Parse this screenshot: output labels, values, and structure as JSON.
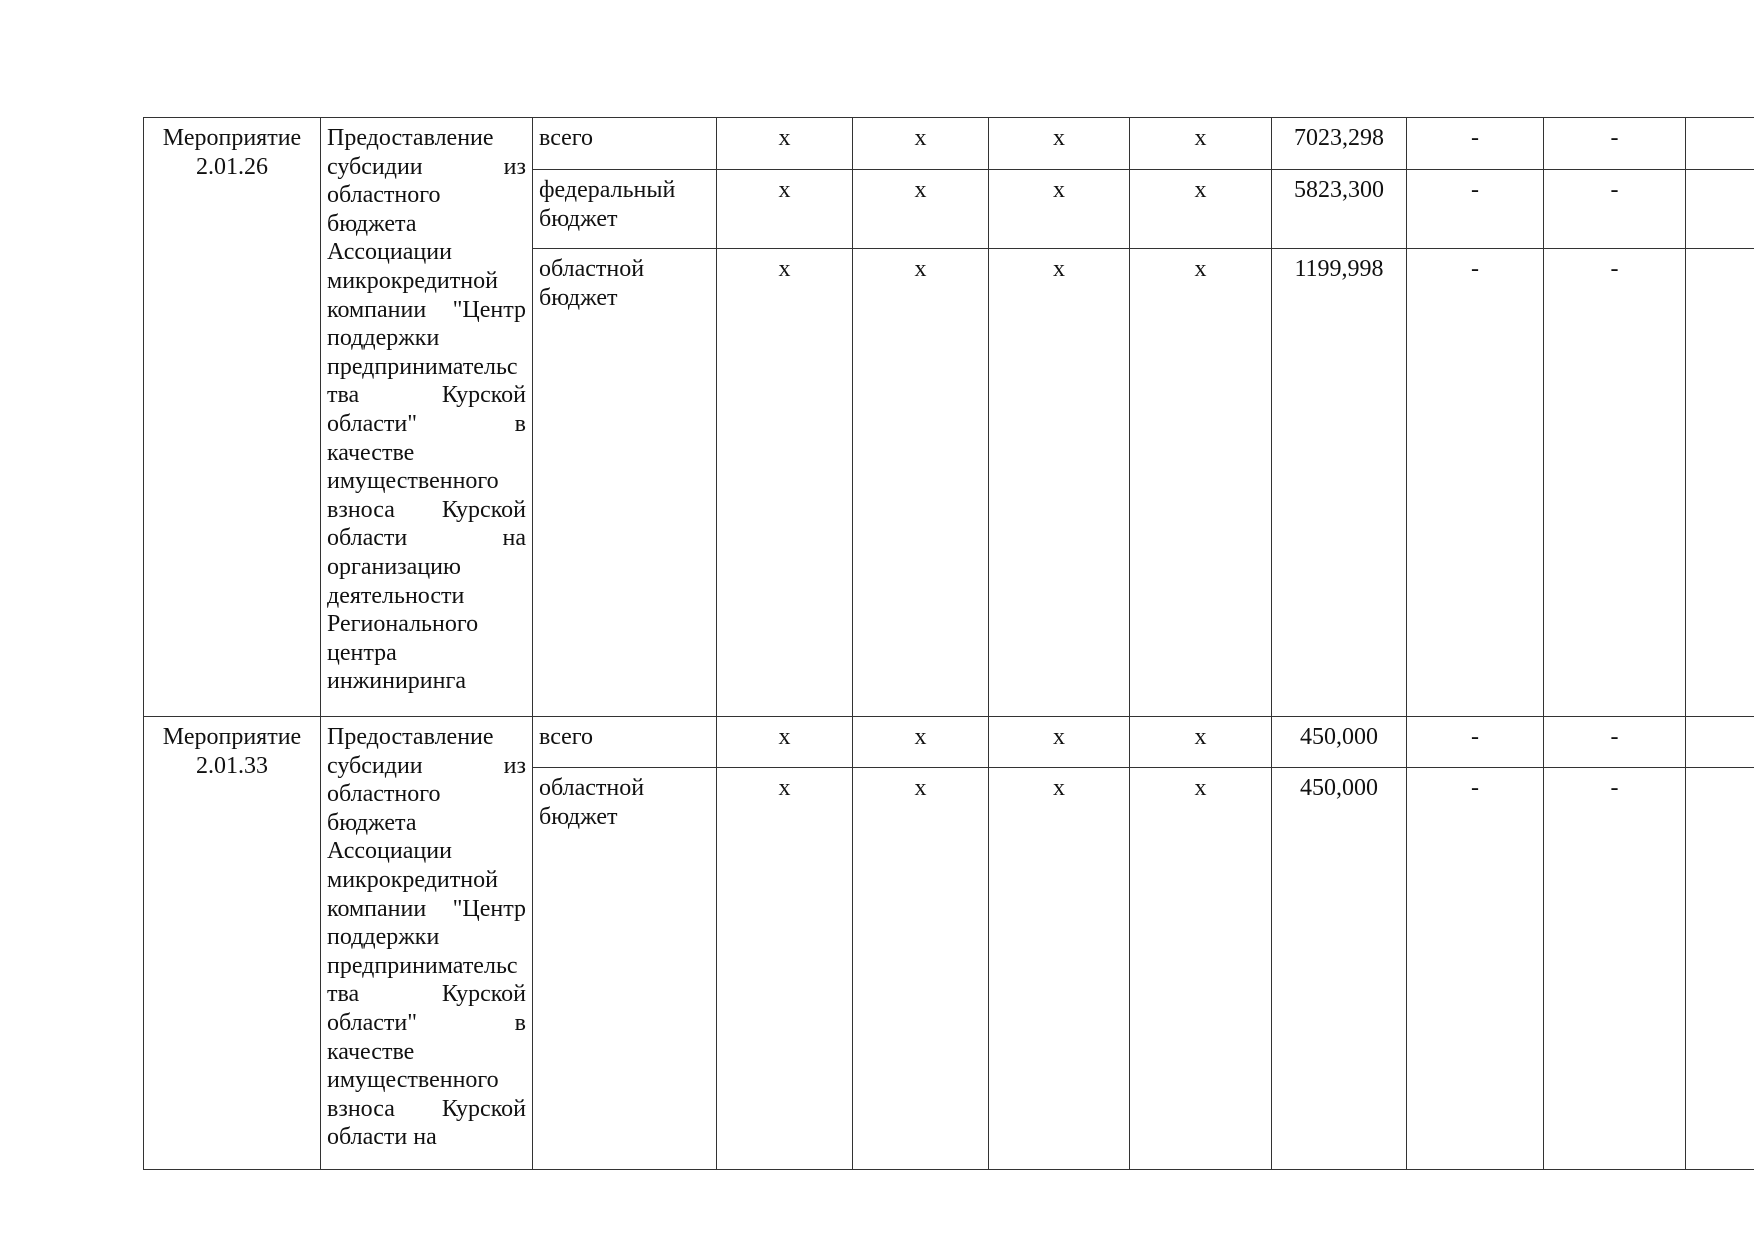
{
  "rows": [
    {
      "event": "Мероприятие 2.01.26",
      "description": "Предоставление субсидии из областного бюджета Ассоциации микрокредитной компании \"Центр поддержки предпринимательства Курской области\" в качестве имущественного взноса Курской области на организацию деятельности Регионального центра инжиниринга",
      "sources": [
        {
          "name": "всего",
          "c1": "х",
          "c2": "х",
          "c3": "х",
          "c4": "х",
          "amount": "7023,298",
          "c6": "-",
          "c7": "-",
          "c8": "-"
        },
        {
          "name": "федеральный бюджет",
          "c1": "х",
          "c2": "х",
          "c3": "х",
          "c4": "х",
          "amount": "5823,300",
          "c6": "-",
          "c7": "-",
          "c8": "-"
        },
        {
          "name": "областной бюджет",
          "c1": "х",
          "c2": "х",
          "c3": "х",
          "c4": "х",
          "amount": "1199,998",
          "c6": "-",
          "c7": "-",
          "c8": "-"
        }
      ]
    },
    {
      "event": "Мероприятие 2.01.33",
      "description": "Предоставление субсидии из областного бюджета Ассоциации микрокредитной компании \"Центр поддержки предпринимательства Курской области\" в качестве имущественного взноса Курской области на",
      "sources": [
        {
          "name": "всего",
          "c1": "х",
          "c2": "х",
          "c3": "х",
          "c4": "х",
          "amount": "450,000",
          "c6": "-",
          "c7": "-",
          "c8": "-"
        },
        {
          "name": "областной бюджет",
          "c1": "х",
          "c2": "х",
          "c3": "х",
          "c4": "х",
          "amount": "450,000",
          "c6": "-",
          "c7": "-",
          "c8": "-"
        }
      ]
    }
  ]
}
